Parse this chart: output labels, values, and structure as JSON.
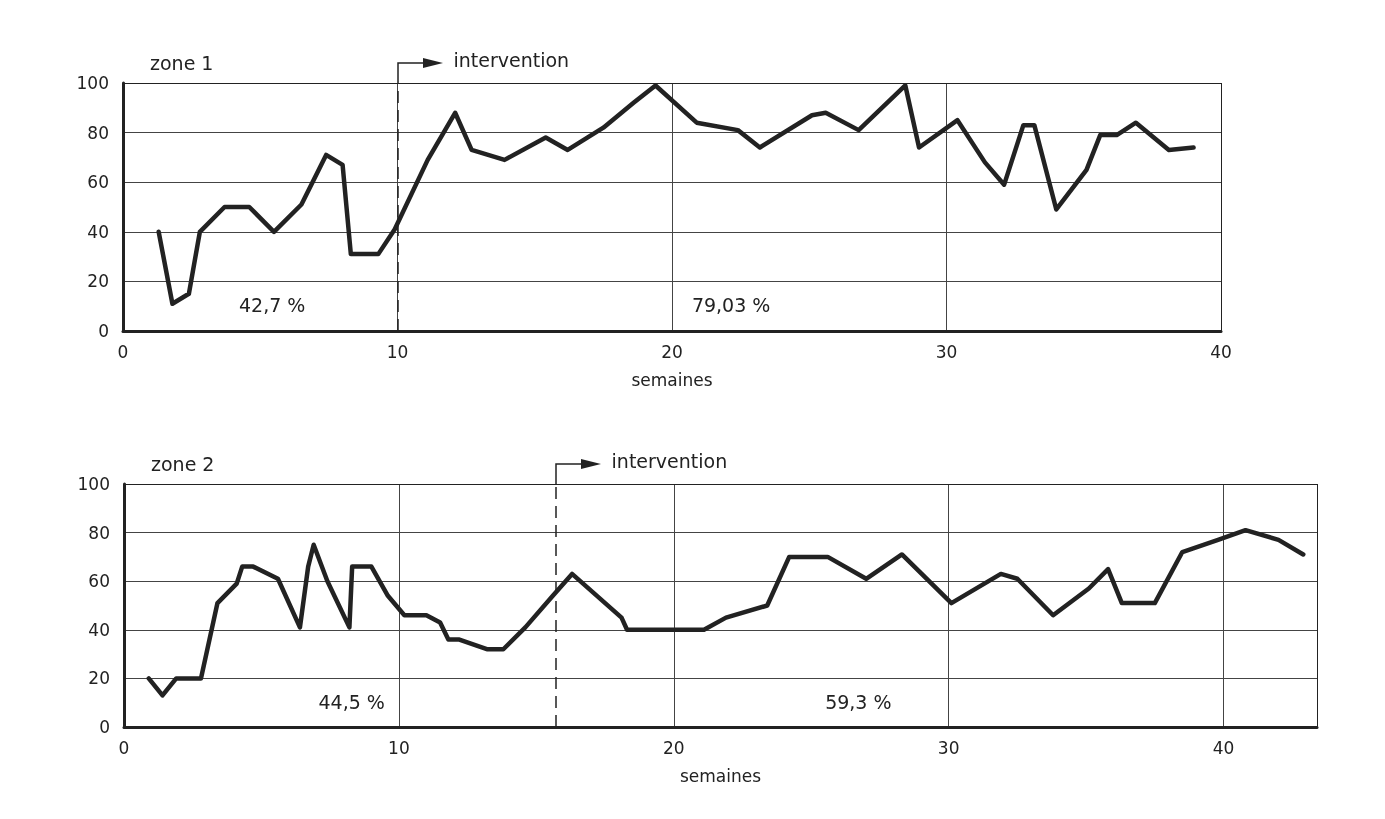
{
  "chart_data": [
    {
      "type": "line",
      "title": "zone 1",
      "xlabel": "semaines",
      "annotations": [
        "42,7 %",
        "79,03 %"
      ],
      "series": [
        {
          "color": "#222222",
          "x": [
            1.3,
            1.8,
            2.4,
            2.8,
            3.7,
            4.6,
            5.5,
            6.5,
            7.4,
            8.0,
            8.3,
            9.3,
            9.9,
            11.1,
            12.1,
            12.7,
            13.9,
            15.4,
            16.2,
            17.5,
            18.6,
            19.4,
            20.9,
            22.4,
            23.2,
            25.1,
            25.6,
            26.8,
            28.5,
            29.0,
            30.4,
            31.4,
            32.1,
            32.8,
            33.2,
            34.0,
            35.1,
            35.6,
            36.2,
            36.9,
            38.1,
            39.0
          ],
          "values": [
            40,
            11,
            15,
            40,
            50,
            50,
            40,
            51,
            71,
            67,
            31,
            31,
            41,
            69,
            88,
            73,
            69,
            78,
            73,
            82,
            92,
            99,
            84,
            81,
            74,
            87,
            88,
            81,
            99,
            74,
            85,
            68,
            59,
            83,
            83,
            49,
            65,
            79,
            79,
            84,
            73,
            74
          ]
        }
      ],
      "xlim": [
        0,
        40
      ],
      "xticks": [
        0,
        10,
        20,
        30,
        40
      ],
      "ylim": [
        0,
        100
      ],
      "yticks": [
        0,
        20,
        40,
        60,
        80,
        100
      ],
      "ref_lines": [
        {
          "axis": "x",
          "value": 10,
          "label": "intervention",
          "line_style": "dashed",
          "color": "#222222"
        }
      ],
      "grid": true,
      "marker": "none",
      "line_style": "solid"
    },
    {
      "type": "line",
      "title": "zone 2",
      "xlabel": "semaines",
      "annotations": [
        "44,5 %",
        "59,3 %"
      ],
      "series": [
        {
          "color": "#222222",
          "x": [
            0.9,
            1.4,
            1.9,
            2.8,
            3.4,
            4.1,
            4.3,
            4.7,
            5.6,
            6.4,
            6.7,
            6.9,
            7.4,
            8.2,
            8.3,
            9.0,
            9.6,
            10.2,
            11.0,
            11.5,
            11.8,
            12.2,
            13.2,
            13.8,
            14.6,
            15.6,
            16.3,
            18.1,
            18.3,
            21.1,
            21.9,
            23.4,
            24.2,
            25.6,
            27.0,
            28.3,
            30.1,
            31.9,
            32.5,
            33.8,
            35.1,
            35.8,
            36.3,
            37.5,
            38.5,
            39.8,
            40.8,
            42.0,
            42.9
          ],
          "values": [
            20,
            13,
            20,
            20,
            51,
            59,
            66,
            66,
            61,
            41,
            66,
            75,
            60,
            41,
            66,
            66,
            54,
            46,
            46,
            43,
            36,
            36,
            32,
            32,
            41,
            54,
            63,
            45,
            40,
            40,
            45,
            50,
            70,
            70,
            61,
            71,
            51,
            63,
            61,
            46,
            57,
            65,
            51,
            51,
            72,
            77,
            81,
            77,
            71
          ]
        }
      ],
      "xlim": [
        0,
        43.4
      ],
      "xticks": [
        0,
        10,
        20,
        30,
        40
      ],
      "ylim": [
        0,
        100
      ],
      "yticks": [
        0,
        20,
        40,
        60,
        80,
        100
      ],
      "ref_lines": [
        {
          "axis": "x",
          "value": 15.7,
          "label": "intervention",
          "line_style": "dashed",
          "color": "#222222"
        }
      ],
      "grid": true,
      "marker": "none",
      "line_style": "solid"
    }
  ]
}
